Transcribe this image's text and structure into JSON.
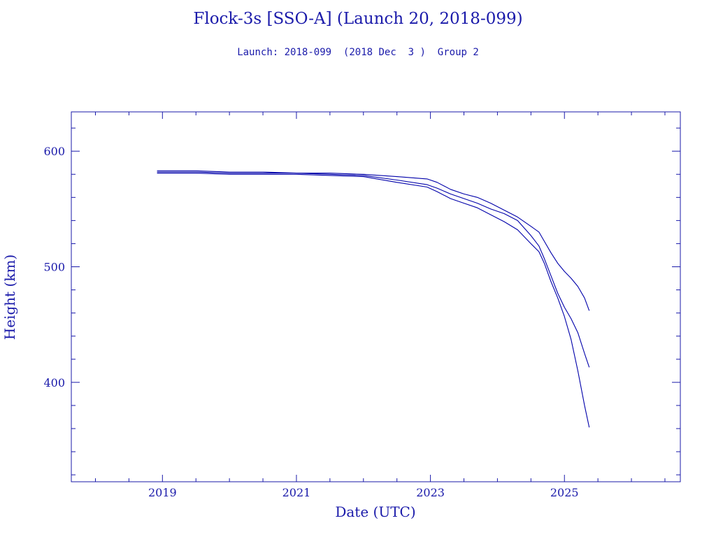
{
  "chart_data": {
    "type": "line",
    "title": "Flock-3s [SSO-A] (Launch 20, 2018-099)",
    "subtitle": "Launch: 2018-099  (2018 Dec  3 )  Group 2",
    "xlabel": "Date (UTC)",
    "ylabel": "Height (km)",
    "xlim": [
      2017.64,
      2026.73
    ],
    "ylim": [
      314,
      634
    ],
    "x_ticks": [
      "2019",
      "2021",
      "2023",
      "2025"
    ],
    "y_ticks": [
      "400",
      "500",
      "600"
    ],
    "grid": false,
    "series": [
      {
        "x": [
          2018.92,
          2019.5,
          2020.0,
          2020.5,
          2021.0,
          2021.5,
          2022.0,
          2022.5,
          2022.95,
          2023.1,
          2023.3,
          2023.5,
          2023.7,
          2023.9,
          2024.1,
          2024.3,
          2024.5,
          2024.62,
          2024.7,
          2024.8,
          2024.9,
          2025.0,
          2025.1,
          2025.2,
          2025.3,
          2025.37
        ],
        "y": [
          583,
          583,
          582,
          582,
          581,
          581,
          580,
          578,
          576,
          573,
          567,
          563,
          560,
          555,
          549,
          543,
          535,
          530,
          522,
          512,
          503,
          496,
          490,
          483,
          473,
          462
        ]
      },
      {
        "x": [
          2018.92,
          2019.5,
          2020.0,
          2020.5,
          2021.0,
          2021.5,
          2022.0,
          2022.5,
          2022.95,
          2023.1,
          2023.3,
          2023.5,
          2023.7,
          2023.9,
          2024.1,
          2024.3,
          2024.5,
          2024.62,
          2024.7,
          2024.8,
          2024.9,
          2025.0,
          2025.1,
          2025.2,
          2025.3,
          2025.37
        ],
        "y": [
          582,
          582,
          581,
          581,
          581,
          580,
          579,
          575,
          571,
          568,
          563,
          559,
          555,
          550,
          546,
          540,
          527,
          518,
          507,
          492,
          477,
          465,
          455,
          443,
          425,
          413
        ]
      },
      {
        "x": [
          2018.92,
          2019.5,
          2020.0,
          2020.5,
          2021.0,
          2021.5,
          2022.0,
          2022.5,
          2022.95,
          2023.1,
          2023.3,
          2023.5,
          2023.7,
          2023.9,
          2024.1,
          2024.3,
          2024.5,
          2024.62,
          2024.7,
          2024.8,
          2024.9,
          2025.0,
          2025.1,
          2025.2,
          2025.3,
          2025.37
        ],
        "y": [
          581,
          581,
          580,
          580,
          580,
          579,
          578,
          573,
          569,
          565,
          559,
          555,
          551,
          545,
          539,
          532,
          520,
          513,
          503,
          487,
          473,
          457,
          437,
          410,
          380,
          361
        ]
      }
    ],
    "line_color": "#0000aa",
    "axis_color": "#1a1aaa"
  }
}
